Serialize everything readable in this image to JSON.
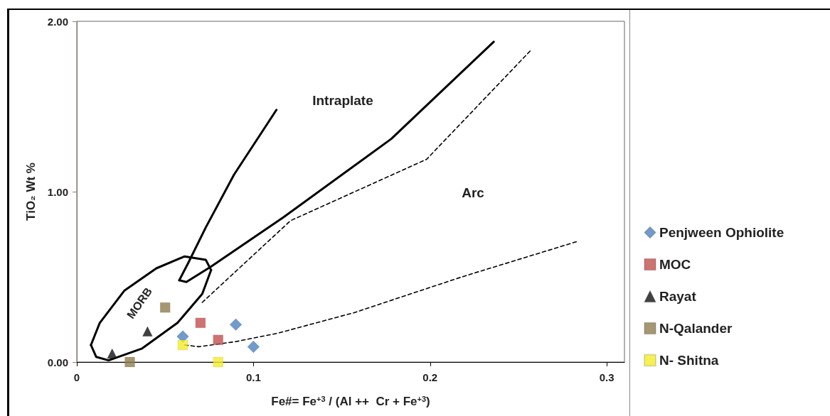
{
  "chart_data": {
    "type": "scatter",
    "xlabel": "Fe#= Fe$^{+3}$ / (Al ++  Cr + Fe$^{+3}$)",
    "ylabel": "TiO₂ Wt %",
    "xlim": [
      0,
      0.31
    ],
    "xticks": [
      0,
      0.1,
      0.2,
      0.3
    ],
    "ylim": [
      0,
      2
    ],
    "yticks": [
      {
        "value": 0,
        "label": "0.00"
      },
      {
        "value": 1,
        "label": "1.00"
      },
      {
        "value": 2,
        "label": "2.00"
      }
    ],
    "grid": false,
    "legend": "right",
    "series": [
      {
        "name": "Penjween Ophiolite",
        "color": "#4f81bd",
        "marker": "diamond",
        "x": [
          0.06,
          0.09,
          0.1
        ],
        "values": [
          0.15,
          0.22,
          0.09
        ]
      },
      {
        "name": "MOC",
        "color": "#c0504d",
        "marker": "square",
        "x": [
          0.07,
          0.08
        ],
        "values": [
          0.23,
          0.13
        ]
      },
      {
        "name": "Rayat",
        "color": "#111111",
        "marker": "triangle",
        "x": [
          0.02,
          0.04
        ],
        "values": [
          0.05,
          0.18
        ]
      },
      {
        "name": "N-Qalander",
        "color": "#8e7d4f",
        "marker": "square",
        "x": [
          0.05,
          0.03
        ],
        "values": [
          0.32,
          0.0
        ]
      },
      {
        "name": "N- Shitna",
        "color": "#f2ec2a",
        "marker": "square",
        "x": [
          0.06,
          0.08
        ],
        "values": [
          0.1,
          0.0
        ]
      },
      {
        "type": "line",
        "color": "#000000",
        "marker": "none",
        "line_style": "solid",
        "x": [
          0.008,
          0.011,
          0.018,
          0.037,
          0.057,
          0.071,
          0.076
        ],
        "values": [
          0.1,
          0.03,
          0.01,
          0.08,
          0.23,
          0.4,
          0.54
        ]
      },
      {
        "type": "line",
        "color": "#000000",
        "marker": "none",
        "line_style": "solid",
        "x": [
          0.008,
          0.013,
          0.027,
          0.045,
          0.061,
          0.073,
          0.076
        ],
        "values": [
          0.1,
          0.23,
          0.42,
          0.55,
          0.62,
          0.6,
          0.54
        ]
      },
      {
        "type": "line",
        "color": "#000000",
        "marker": "none",
        "line_style": "solid",
        "x": [
          0.058,
          0.063,
          0.073,
          0.089,
          0.113
        ],
        "values": [
          0.48,
          0.58,
          0.79,
          1.1,
          1.48
        ]
      },
      {
        "type": "line",
        "color": "#000000",
        "marker": "none",
        "line_style": "solid",
        "x": [
          0.058,
          0.062,
          0.076,
          0.117,
          0.178,
          0.236
        ],
        "values": [
          0.48,
          0.47,
          0.56,
          0.85,
          1.31,
          1.88
        ]
      },
      {
        "type": "line",
        "color": "#000000",
        "marker": "none",
        "line_style": "dashed",
        "x": [
          0.071,
          0.121,
          0.198,
          0.257
        ],
        "values": [
          0.35,
          0.83,
          1.19,
          1.83
        ]
      },
      {
        "type": "line",
        "color": "#000000",
        "marker": "none",
        "line_style": "dashed",
        "x": [
          0.061,
          0.069,
          0.09,
          0.114,
          0.157,
          0.218,
          0.284
        ],
        "values": [
          0.1,
          0.09,
          0.12,
          0.17,
          0.29,
          0.5,
          0.71
        ]
      }
    ],
    "annotations": [
      "Intraplate",
      "Arc",
      "MORB"
    ]
  }
}
